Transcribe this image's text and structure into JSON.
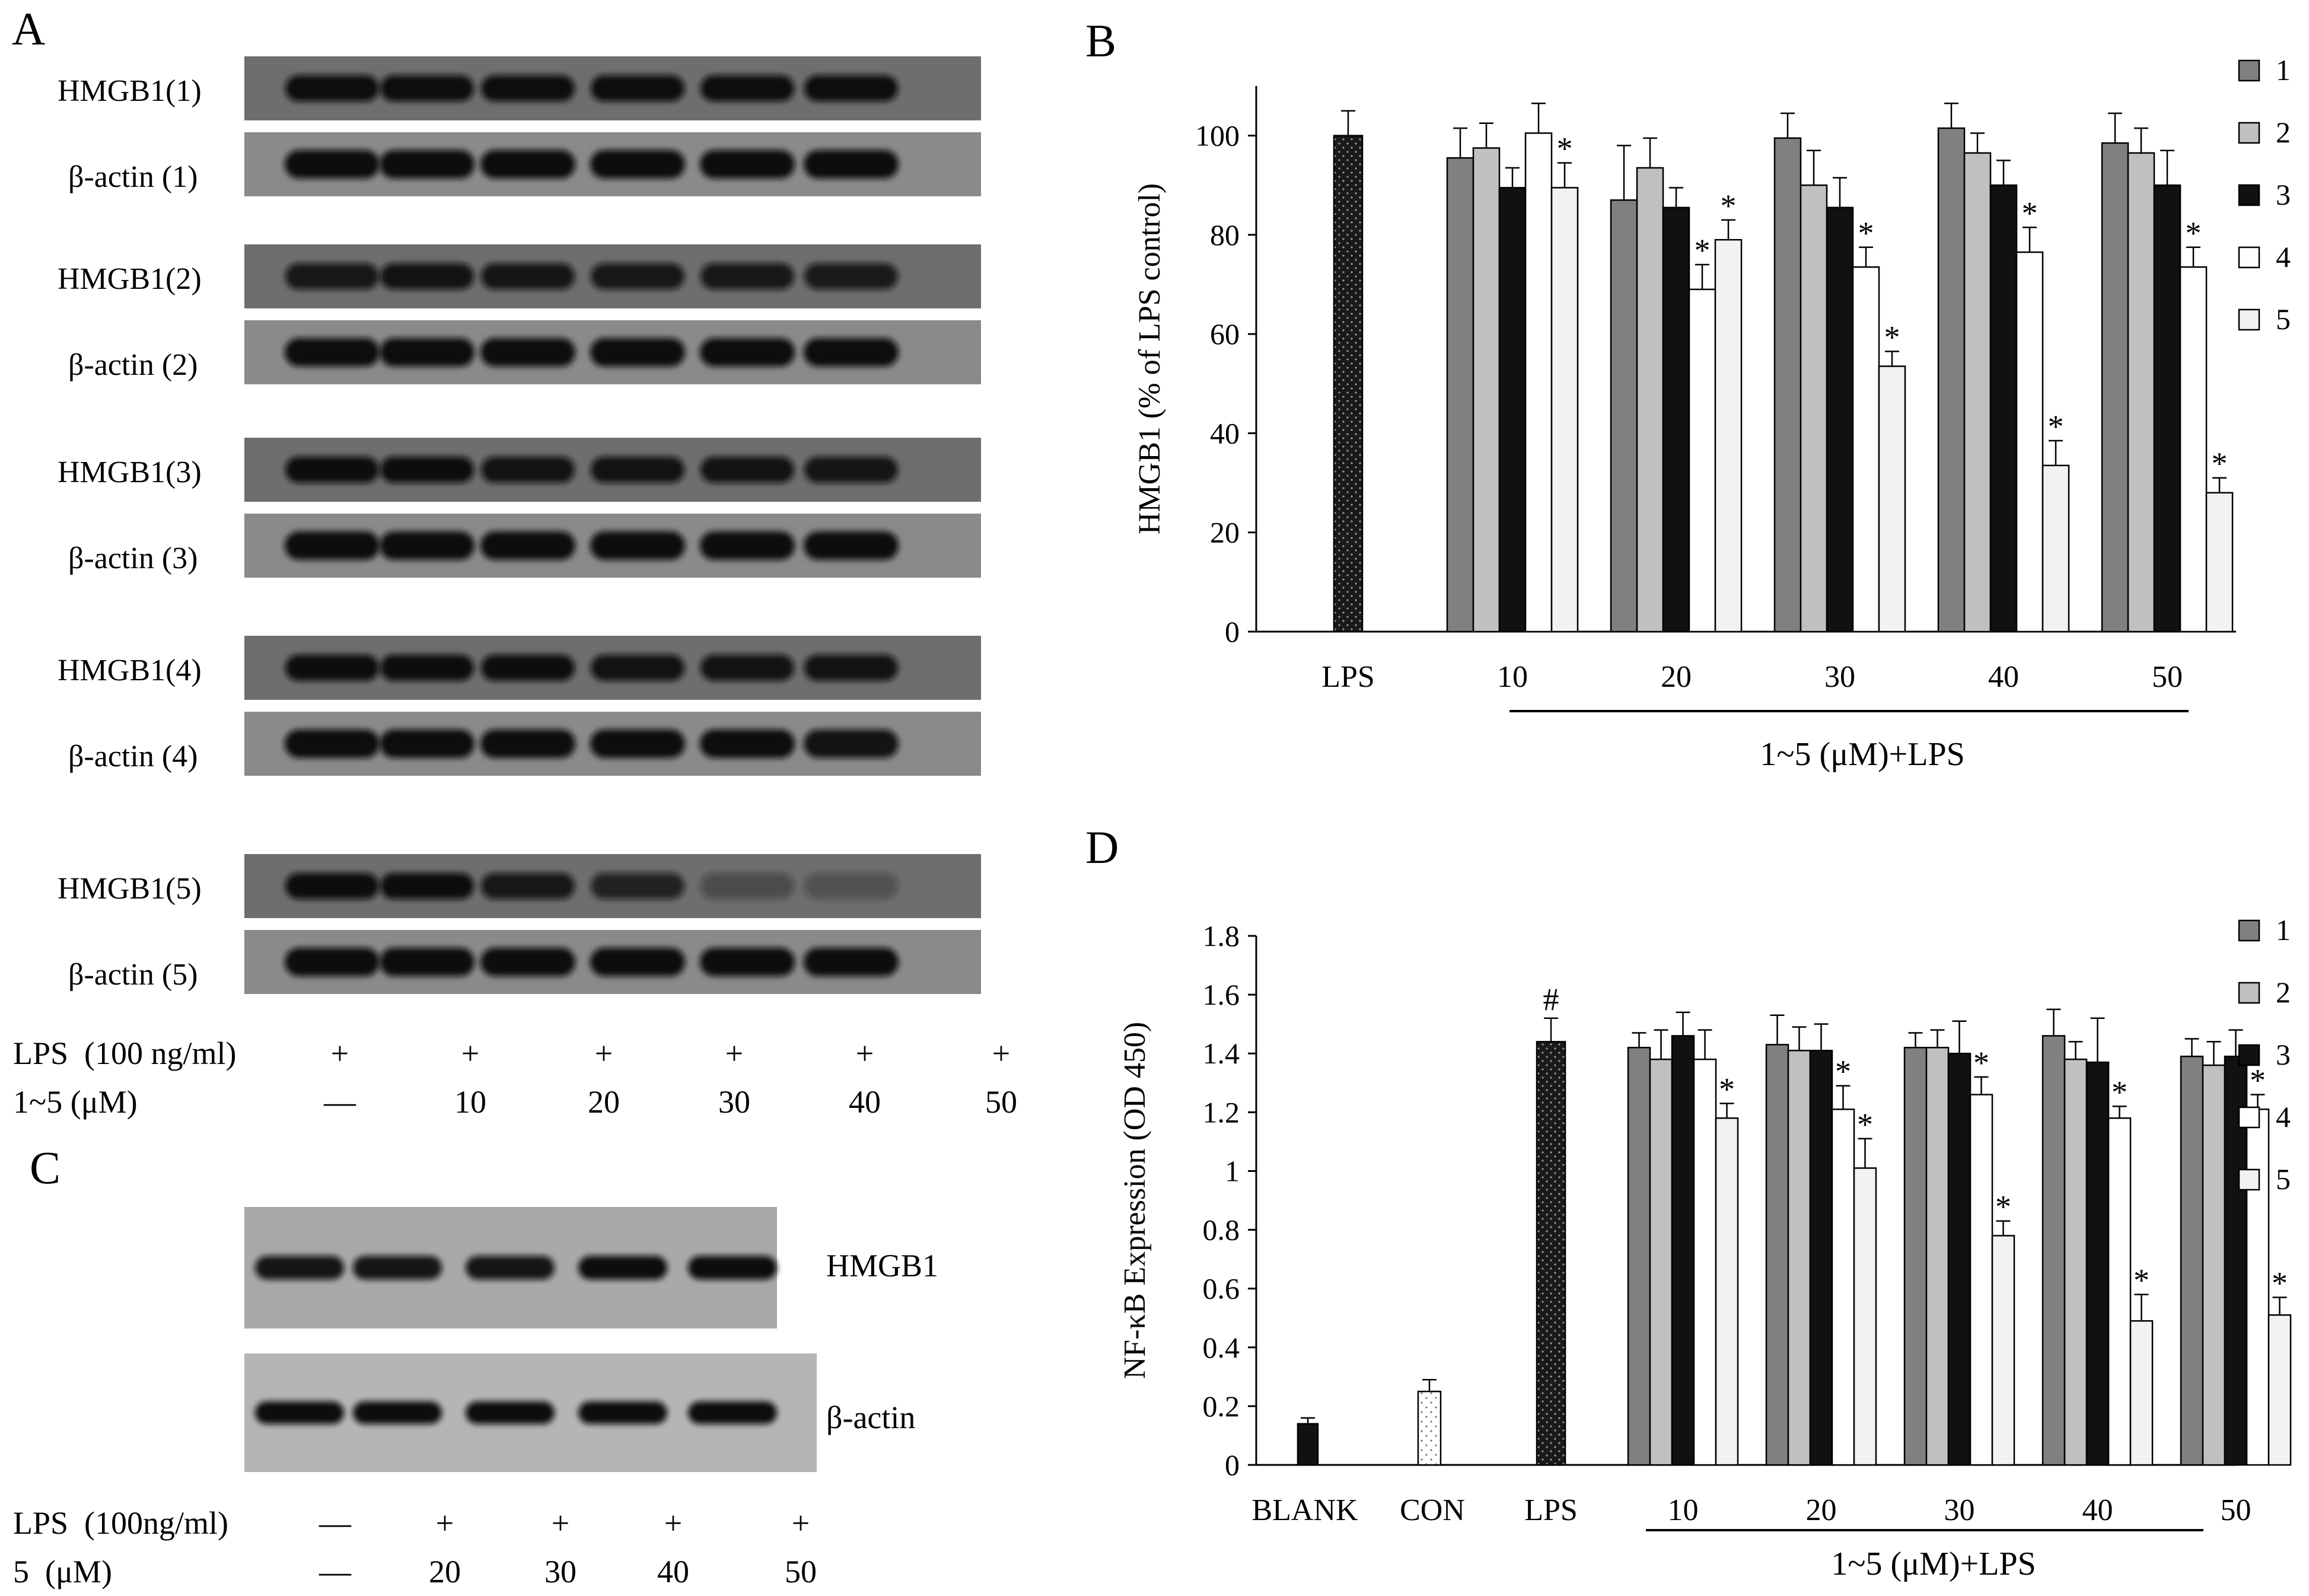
{
  "panelA": {
    "letter": "A",
    "blots": [
      {
        "hmgb1": "HMGB1(1)",
        "actin": "β-actin (1)",
        "hmgb1_int": [
          1,
          1,
          1,
          1,
          1,
          1
        ],
        "actin_int": [
          1,
          1,
          1,
          1,
          1,
          1
        ]
      },
      {
        "hmgb1": "HMGB1(2)",
        "actin": "β-actin (2)",
        "hmgb1_int": [
          0.9,
          0.95,
          0.92,
          0.9,
          0.9,
          0.88
        ],
        "actin_int": [
          1,
          1,
          1,
          1,
          1,
          1
        ]
      },
      {
        "hmgb1": "HMGB1(3)",
        "actin": "β-actin (3)",
        "hmgb1_int": [
          1,
          1,
          0.95,
          0.95,
          0.95,
          0.92
        ],
        "actin_int": [
          1,
          1,
          1,
          1,
          1,
          1
        ]
      },
      {
        "hmgb1": "HMGB1(4)",
        "actin": "β-actin (4)",
        "hmgb1_int": [
          1,
          1,
          1,
          0.95,
          0.95,
          0.95
        ],
        "actin_int": [
          1,
          1,
          1,
          1,
          1,
          0.95
        ]
      },
      {
        "hmgb1": "HMGB1(5)",
        "actin": "β-actin (5)",
        "hmgb1_int": [
          1,
          1,
          0.9,
          0.8,
          0.4,
          0.35
        ],
        "actin_int": [
          1,
          1,
          1,
          1,
          1,
          1
        ]
      }
    ],
    "row1_label": "LPS  (100 ng/ml)",
    "row1_values": [
      "+",
      "+",
      "+",
      "+",
      "+",
      "+"
    ],
    "row2_label": "1~5 (μM)",
    "row2_values": [
      "—",
      "10",
      "20",
      "30",
      "40",
      "50"
    ]
  },
  "panelC": {
    "letter": "C",
    "hmgb1_label": "HMGB1",
    "actin_label": "β-actin",
    "hmgb1_int": [
      0.95,
      0.95,
      0.95,
      1,
      1
    ],
    "actin_int": [
      1,
      1,
      1,
      1,
      1
    ],
    "row1_label": "LPS  (100ng/ml)",
    "row1_values": [
      "—",
      "+",
      "+",
      "+",
      "+"
    ],
    "row2_label": "5  (μM)",
    "row2_values": [
      "—",
      "20",
      "30",
      "40",
      "50"
    ]
  },
  "chart_data": [
    {
      "panel": "B",
      "type": "bar",
      "ylabel": "HMGB1 (% of LPS control)",
      "ylim": [
        0,
        110
      ],
      "yticks": [
        0,
        20,
        40,
        60,
        80,
        100
      ],
      "control": {
        "label": "LPS",
        "value": 100,
        "err": 5
      },
      "groups": [
        "10",
        "20",
        "30",
        "40",
        "50"
      ],
      "group_label": "1~5 (μM)+LPS",
      "series": [
        {
          "name": "1",
          "color": "#808080",
          "values": [
            95.5,
            87,
            99.5,
            101.5,
            98.5
          ],
          "err": [
            6,
            11,
            5,
            5,
            6
          ],
          "sig": [
            false,
            false,
            false,
            false,
            false
          ]
        },
        {
          "name": "2",
          "color": "#c0c0c0",
          "values": [
            97.5,
            93.5,
            90,
            96.5,
            96.5
          ],
          "err": [
            5,
            6,
            7,
            4,
            5
          ],
          "sig": [
            false,
            false,
            false,
            false,
            false
          ]
        },
        {
          "name": "3",
          "color": "#111111",
          "values": [
            89.5,
            85.5,
            85.5,
            90,
            90
          ],
          "err": [
            4,
            4,
            6,
            5,
            7
          ],
          "sig": [
            false,
            false,
            false,
            false,
            false
          ]
        },
        {
          "name": "4",
          "color": "#ffffff",
          "values": [
            100.5,
            69,
            73.5,
            76.5,
            73.5
          ],
          "err": [
            6,
            5,
            4,
            5,
            4
          ],
          "sig": [
            false,
            true,
            true,
            true,
            true
          ]
        },
        {
          "name": "5",
          "color": "#f2f2f2",
          "values": [
            89.5,
            79,
            53.5,
            33.5,
            28
          ],
          "err": [
            5,
            4,
            3,
            5,
            3
          ],
          "sig": [
            true,
            true,
            true,
            true,
            true
          ]
        }
      ],
      "legend": [
        "1",
        "2",
        "3",
        "4",
        "5"
      ]
    },
    {
      "panel": "D",
      "type": "bar",
      "ylabel": "NF-κB Expression  (OD 450)",
      "ylim": [
        0,
        1.8
      ],
      "yticks": [
        "0",
        "0.2",
        "0.4",
        "0.6",
        "0.8",
        "1",
        "1.2",
        "1.4",
        "1.6",
        "1.8"
      ],
      "controls": [
        {
          "label": "BLANK",
          "value": 0.14,
          "err": 0.02,
          "style": "black"
        },
        {
          "label": "CON",
          "value": 0.25,
          "err": 0.04,
          "style": "dotted"
        },
        {
          "label": "LPS",
          "value": 1.44,
          "err": 0.08,
          "style": "dark",
          "mark": "#"
        }
      ],
      "groups": [
        "10",
        "20",
        "30",
        "40",
        "50"
      ],
      "group_label": "1~5 (μM)+LPS",
      "series": [
        {
          "name": "1",
          "color": "#808080",
          "values": [
            1.42,
            1.43,
            1.42,
            1.46,
            1.39
          ],
          "err": [
            0.05,
            0.1,
            0.05,
            0.09,
            0.06
          ],
          "sig": [
            false,
            false,
            false,
            false,
            false
          ]
        },
        {
          "name": "2",
          "color": "#c0c0c0",
          "values": [
            1.38,
            1.41,
            1.42,
            1.38,
            1.36
          ],
          "err": [
            0.1,
            0.08,
            0.06,
            0.06,
            0.08
          ],
          "sig": [
            false,
            false,
            false,
            false,
            false
          ]
        },
        {
          "name": "3",
          "color": "#111111",
          "values": [
            1.46,
            1.41,
            1.4,
            1.37,
            1.39
          ],
          "err": [
            0.08,
            0.09,
            0.11,
            0.15,
            0.09
          ],
          "sig": [
            false,
            false,
            false,
            false,
            false
          ]
        },
        {
          "name": "4",
          "color": "#ffffff",
          "values": [
            1.38,
            1.21,
            1.26,
            1.18,
            1.21
          ],
          "err": [
            0.1,
            0.08,
            0.06,
            0.04,
            0.05
          ],
          "sig": [
            false,
            true,
            true,
            true,
            true
          ]
        },
        {
          "name": "5",
          "color": "#f2f2f2",
          "values": [
            1.18,
            1.01,
            0.78,
            0.49,
            0.51
          ],
          "err": [
            0.05,
            0.1,
            0.05,
            0.09,
            0.06
          ],
          "sig": [
            true,
            true,
            true,
            true,
            true
          ]
        }
      ],
      "legend": [
        "1",
        "2",
        "3",
        "4",
        "5"
      ]
    }
  ]
}
